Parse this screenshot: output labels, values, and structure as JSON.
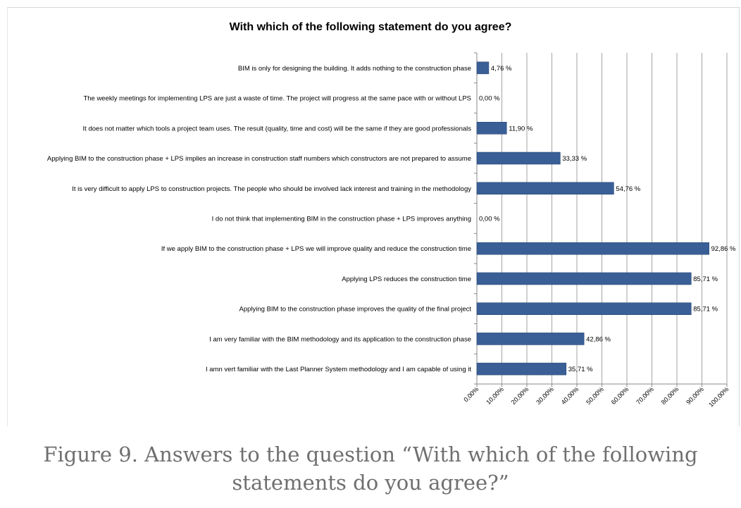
{
  "caption": "Figure 9. Answers to the question “With which of the following statements do you agree?”",
  "chart_data": {
    "type": "bar",
    "orientation": "horizontal",
    "title": "With which of the following statement do you agree?",
    "categories": [
      "BIM is only for designing the building. It adds nothing to the construction phase",
      "The weekly meetings for implementing LPS are just a waste of time. The project will progress at the same pace with or without LPS",
      "It does not matter which tools a project team uses. The result (quality, time and cost) will be the same if they are good professionals",
      "Applying BIM to the construction phase + LPS implies an increase in construction staff numbers which constructors are not prepared to assume",
      "It is very difficult to apply LPS to construction projects. The people who should be involved lack interest and training in the methodology",
      "I do not think that implementing BIM in the construction phase + LPS improves anything",
      "If we apply BIM to the construction phase + LPS we will improve quality and reduce the construction time",
      "Applying LPS reduces the construction time",
      "Applying BIM to the construction phase improves the quality of the final project",
      "I am very familiar with the BIM methodology and its application to the construction phase",
      "I amn vert familiar with the Last Planner System methodology and I am capable of using it"
    ],
    "values": [
      4.76,
      0.0,
      11.9,
      33.33,
      54.76,
      0.0,
      92.86,
      85.71,
      85.71,
      42.86,
      35.71
    ],
    "value_labels": [
      "4,76 %",
      "0,00 %",
      "11,90 %",
      "33,33 %",
      "54,76 %",
      "0,00 %",
      "92,86 %",
      "85,71 %",
      "85,71 %",
      "42,86 %",
      "35,71 %"
    ],
    "xlim": [
      0,
      100
    ],
    "x_ticks": [
      0,
      10,
      20,
      30,
      40,
      50,
      60,
      70,
      80,
      90,
      100
    ],
    "x_tick_labels": [
      "0,00%",
      "10,00%",
      "20,00%",
      "30,00%",
      "40,00%",
      "50,00%",
      "60,00%",
      "70,00%",
      "80,00%",
      "90,00%",
      "100,00%"
    ],
    "grid": "vertical",
    "bar_color": "#3a5f96"
  }
}
